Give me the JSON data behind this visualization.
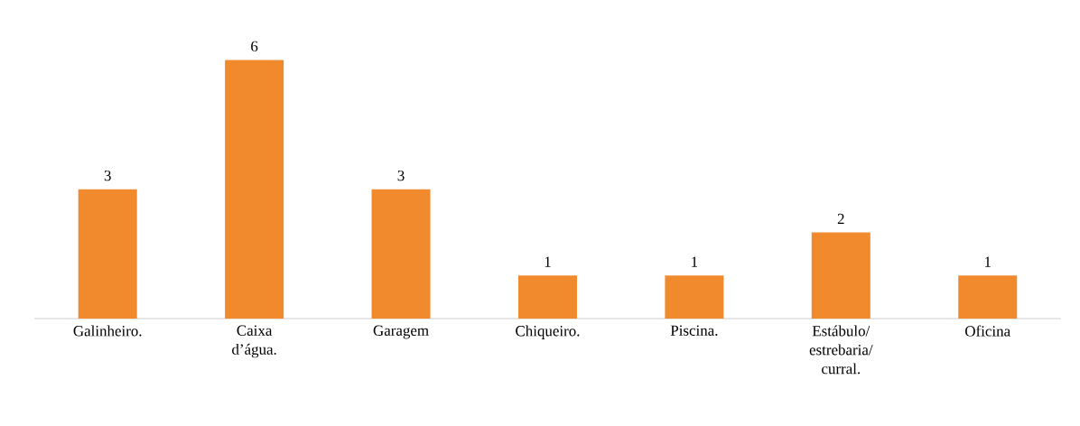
{
  "chart_data": {
    "type": "bar",
    "categories": [
      "Galinheiro.",
      "Caixa d’água.",
      "Garagem",
      "Chiqueiro.",
      "Piscina.",
      "Estábulo/ estrebaria/ curral.",
      "Oficina"
    ],
    "values": [
      3,
      6,
      3,
      1,
      1,
      2,
      1
    ],
    "color": "#f08a2c",
    "data_labels": true
  }
}
